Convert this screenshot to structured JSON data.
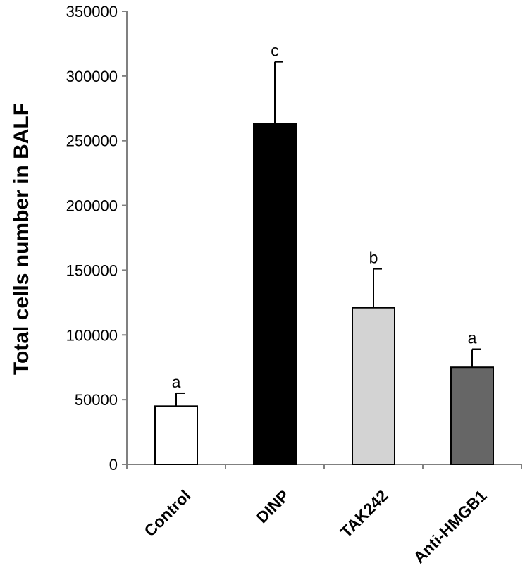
{
  "chart_data": {
    "type": "bar",
    "title": "",
    "xlabel": "",
    "ylabel": "Total cells number in BALF",
    "categories": [
      "Control",
      "DINP",
      "TAK242",
      "Anti-HMGB1"
    ],
    "values": [
      45000,
      263000,
      121000,
      75000
    ],
    "errors": [
      10000,
      48000,
      30000,
      14000
    ],
    "significance": [
      "a",
      "c",
      "b",
      "a"
    ],
    "bar_colors": [
      "#ffffff",
      "#000000",
      "#d3d3d3",
      "#666666"
    ],
    "ylim": [
      0,
      350000
    ],
    "yticks": [
      0,
      50000,
      100000,
      150000,
      200000,
      250000,
      300000,
      350000
    ],
    "ytick_labels": [
      "0",
      "50000",
      "100000",
      "150000",
      "200000",
      "250000",
      "300000",
      "350000"
    ],
    "grid": false
  }
}
